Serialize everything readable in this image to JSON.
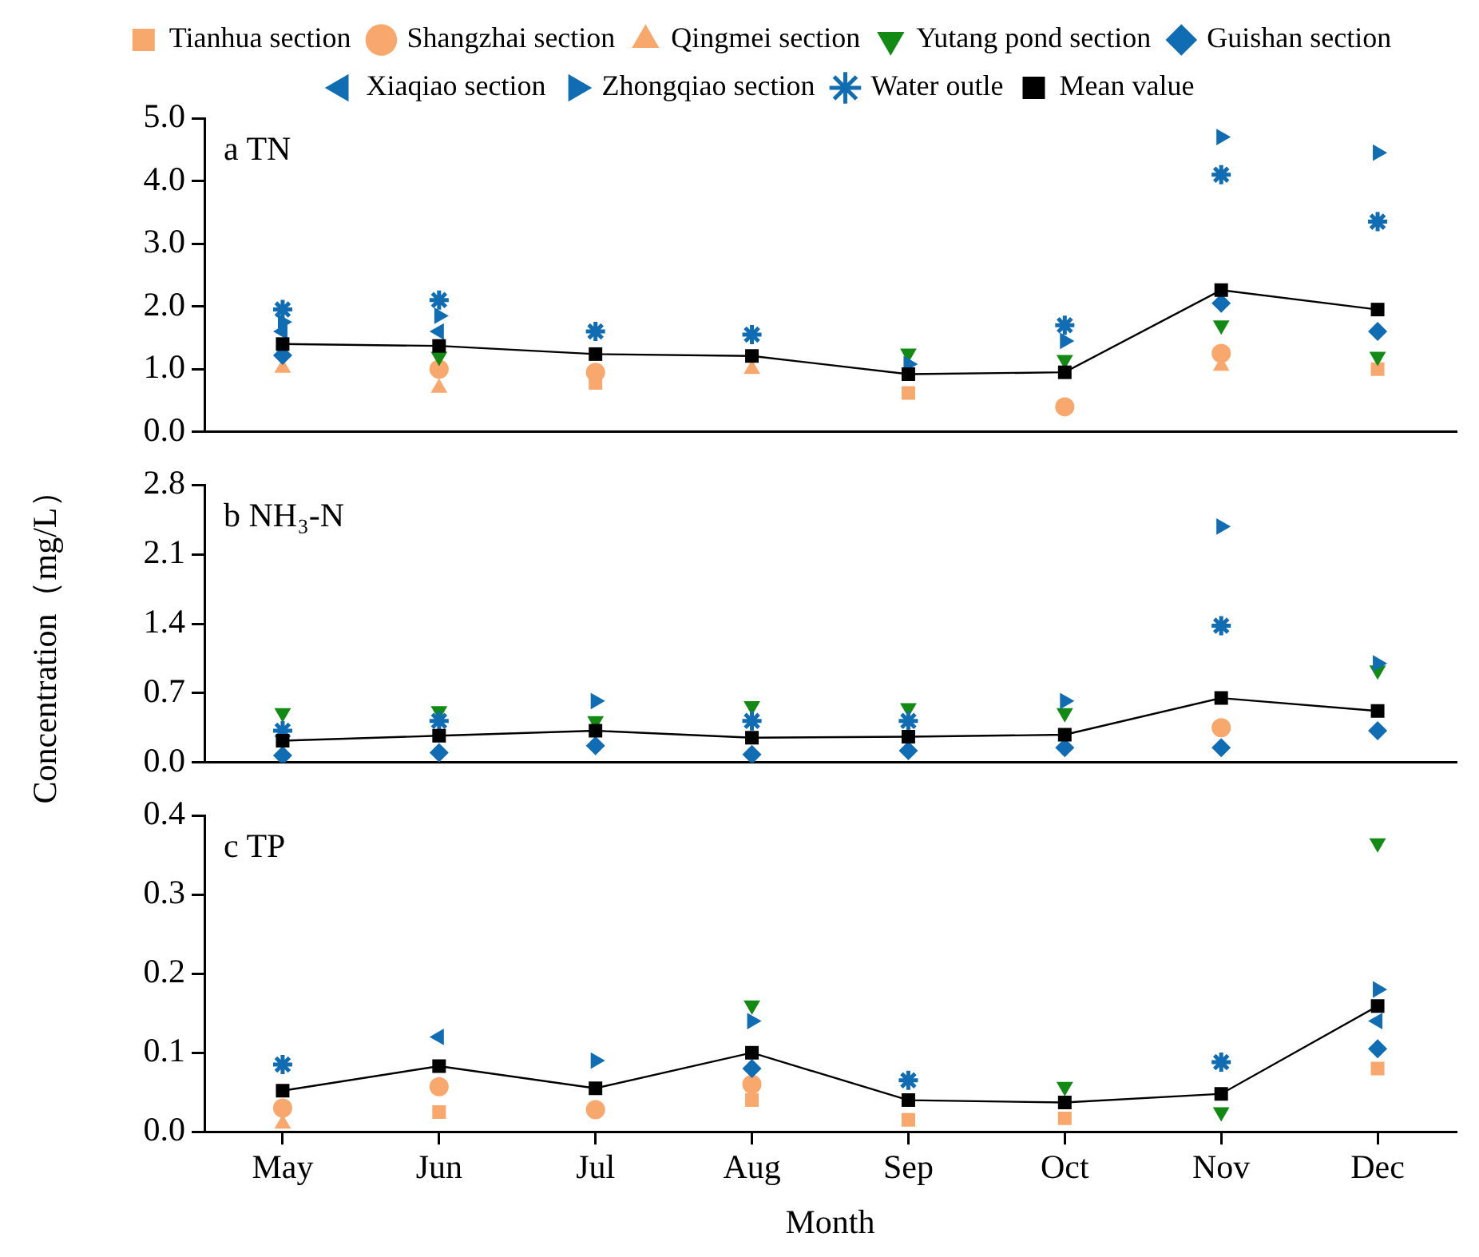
{
  "chart_data": [
    {
      "type": "scatter",
      "title": "a TN",
      "categories": [
        null,
        null,
        null,
        null,
        null,
        null,
        null,
        null
      ],
      "ylim": [
        0,
        5
      ],
      "yticks": [
        {
          "value": 0,
          "label": "0.0"
        },
        {
          "value": 1,
          "label": "1.0"
        },
        {
          "value": 2,
          "label": "2.0"
        },
        {
          "value": 3,
          "label": "3.0"
        },
        {
          "value": 4,
          "label": "4.0"
        },
        {
          "value": 5,
          "label": "5.0"
        }
      ],
      "grid": false,
      "legend": "top",
      "tick_labels": "y",
      "series": [
        {
          "name": "Tianhua section",
          "color": "#f8a86c",
          "marker": "square",
          "values": [
            null,
            null,
            0.78,
            null,
            0.62,
            null,
            null,
            1.0
          ]
        },
        {
          "name": "Shangzhai section",
          "color": "#f8a86c",
          "marker": "circle",
          "values": [
            null,
            1.0,
            0.95,
            null,
            null,
            0.4,
            1.25,
            null
          ]
        },
        {
          "name": "Qingmei section",
          "color": "#f8a86c",
          "marker": "triangle",
          "values": [
            1.02,
            0.7,
            null,
            1.0,
            null,
            null,
            1.05,
            null
          ]
        },
        {
          "name": "Yutang pond section",
          "color": "#138a13",
          "marker": "triangle-down",
          "values": [
            null,
            1.2,
            null,
            null,
            1.25,
            1.15,
            1.7,
            1.2
          ]
        },
        {
          "name": "Guishan section",
          "color": "#116db3",
          "marker": "diamond",
          "values": [
            1.22,
            null,
            null,
            null,
            null,
            null,
            2.05,
            1.6
          ]
        },
        {
          "name": "Xiaqiao section",
          "color": "#116db3",
          "marker": "triangle-left",
          "values": [
            1.6,
            1.6,
            null,
            null,
            null,
            null,
            null,
            null
          ]
        },
        {
          "name": "Zhongqiao section",
          "color": "#116db3",
          "marker": "triangle-right",
          "values": [
            1.75,
            1.85,
            null,
            null,
            1.08,
            1.45,
            4.7,
            4.45
          ]
        },
        {
          "name": "Water outle",
          "color": "#116db3",
          "marker": "cross",
          "values": [
            1.95,
            2.1,
            1.6,
            1.55,
            null,
            1.7,
            4.1,
            3.35
          ]
        },
        {
          "name": "Mean value",
          "type": "line",
          "color": "#000000",
          "marker": "square",
          "values": [
            1.4,
            1.37,
            1.24,
            1.21,
            0.92,
            0.95,
            2.26,
            1.95
          ]
        }
      ]
    },
    {
      "type": "scatter",
      "title": "b NH₃-N",
      "ylabel": "Concentration（mg/L）",
      "categories": [
        null,
        null,
        null,
        null,
        null,
        null,
        null,
        null
      ],
      "ylim": [
        0,
        2.8
      ],
      "yticks": [
        {
          "value": 0,
          "label": "0.0"
        },
        0.7,
        1.4,
        2.1,
        2.8
      ],
      "grid": false,
      "tick_labels": "y",
      "series": [
        {
          "color": "#f8a86c",
          "marker": "square",
          "values": [
            null,
            null,
            null,
            null,
            null,
            null,
            null,
            null
          ]
        },
        {
          "color": "#f8a86c",
          "marker": "circle",
          "values": [
            null,
            null,
            null,
            null,
            null,
            null,
            0.35,
            null
          ]
        },
        {
          "color": "#f8a86c",
          "marker": "triangle",
          "values": [
            null,
            null,
            null,
            null,
            null,
            null,
            null,
            null
          ]
        },
        {
          "color": "#138a13",
          "marker": "triangle-down",
          "values": [
            0.5,
            0.52,
            0.42,
            0.57,
            0.55,
            0.5,
            null,
            0.93
          ]
        },
        {
          "color": "#116db3",
          "marker": "diamond",
          "values": [
            0.07,
            0.1,
            0.17,
            0.08,
            0.12,
            0.15,
            0.15,
            0.32
          ]
        },
        {
          "color": "#116db3",
          "marker": "triangle-left",
          "values": [
            null,
            null,
            null,
            null,
            null,
            null,
            null,
            null
          ]
        },
        {
          "color": "#116db3",
          "marker": "triangle-right",
          "values": [
            null,
            null,
            0.62,
            null,
            null,
            0.62,
            2.38,
            1.0
          ]
        },
        {
          "color": "#116db3",
          "marker": "cross",
          "values": [
            0.32,
            0.42,
            null,
            0.42,
            0.42,
            null,
            1.38,
            null
          ]
        },
        {
          "type": "line",
          "color": "#000000",
          "marker": "square",
          "values": [
            0.22,
            0.27,
            0.32,
            0.25,
            0.26,
            0.28,
            0.65,
            0.52
          ]
        }
      ]
    },
    {
      "type": "scatter",
      "title": "c TP",
      "xlabel": "Month",
      "categories": [
        "May",
        "Jun",
        "Jul",
        "Aug",
        "Sep",
        "Oct",
        "Nov",
        "Dec"
      ],
      "ylim": [
        0,
        0.4
      ],
      "yticks": [
        {
          "value": 0,
          "label": "0.0"
        },
        0.1,
        0.2,
        0.3,
        0.4
      ],
      "grid": false,
      "series": [
        {
          "color": "#f8a86c",
          "marker": "square",
          "values": [
            null,
            0.025,
            null,
            0.04,
            0.015,
            0.017,
            null,
            0.08
          ]
        },
        {
          "color": "#f8a86c",
          "marker": "circle",
          "values": [
            0.03,
            0.057,
            0.028,
            0.06,
            null,
            null,
            null,
            null
          ]
        },
        {
          "color": "#f8a86c",
          "marker": "triangle",
          "values": [
            0.01,
            null,
            null,
            null,
            null,
            null,
            null,
            null
          ]
        },
        {
          "color": "#138a13",
          "marker": "triangle-down",
          "values": [
            null,
            null,
            null,
            0.16,
            null,
            0.057,
            0.025,
            0.365
          ]
        },
        {
          "color": "#116db3",
          "marker": "diamond",
          "values": [
            null,
            null,
            null,
            0.08,
            null,
            null,
            null,
            0.105
          ]
        },
        {
          "color": "#116db3",
          "marker": "triangle-left",
          "values": [
            null,
            0.12,
            null,
            null,
            null,
            null,
            null,
            0.14
          ]
        },
        {
          "color": "#116db3",
          "marker": "triangle-right",
          "values": [
            null,
            null,
            0.09,
            0.14,
            null,
            null,
            null,
            0.18
          ]
        },
        {
          "color": "#116db3",
          "marker": "cross",
          "values": [
            0.085,
            null,
            null,
            null,
            0.065,
            null,
            0.088,
            null
          ]
        },
        {
          "type": "line",
          "color": "#000000",
          "marker": "square",
          "values": [
            0.052,
            0.083,
            0.055,
            0.1,
            0.04,
            0.037,
            0.048,
            0.159
          ]
        }
      ]
    }
  ]
}
